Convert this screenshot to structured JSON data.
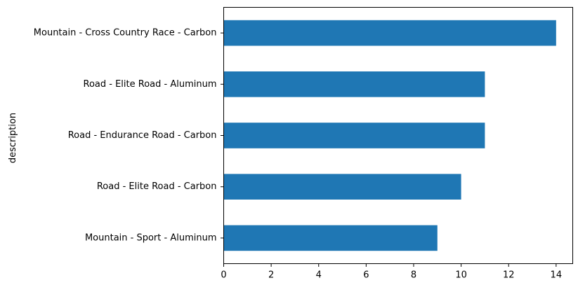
{
  "chart_data": {
    "type": "bar",
    "orientation": "horizontal",
    "categories": [
      "Mountain - Sport - Aluminum",
      "Road - Elite Road - Carbon",
      "Road - Endurance Road - Carbon",
      "Road - Elite Road - Aluminum",
      "Mountain - Cross Country Race - Carbon"
    ],
    "values": [
      9,
      10,
      11,
      11,
      14
    ],
    "xlabel": "",
    "ylabel": "description",
    "xlim": [
      0,
      14.7
    ],
    "xticks": [
      0,
      2,
      4,
      6,
      8,
      10,
      12,
      14
    ],
    "grid": false,
    "legend": false,
    "bar_color": "#1f77b4"
  }
}
